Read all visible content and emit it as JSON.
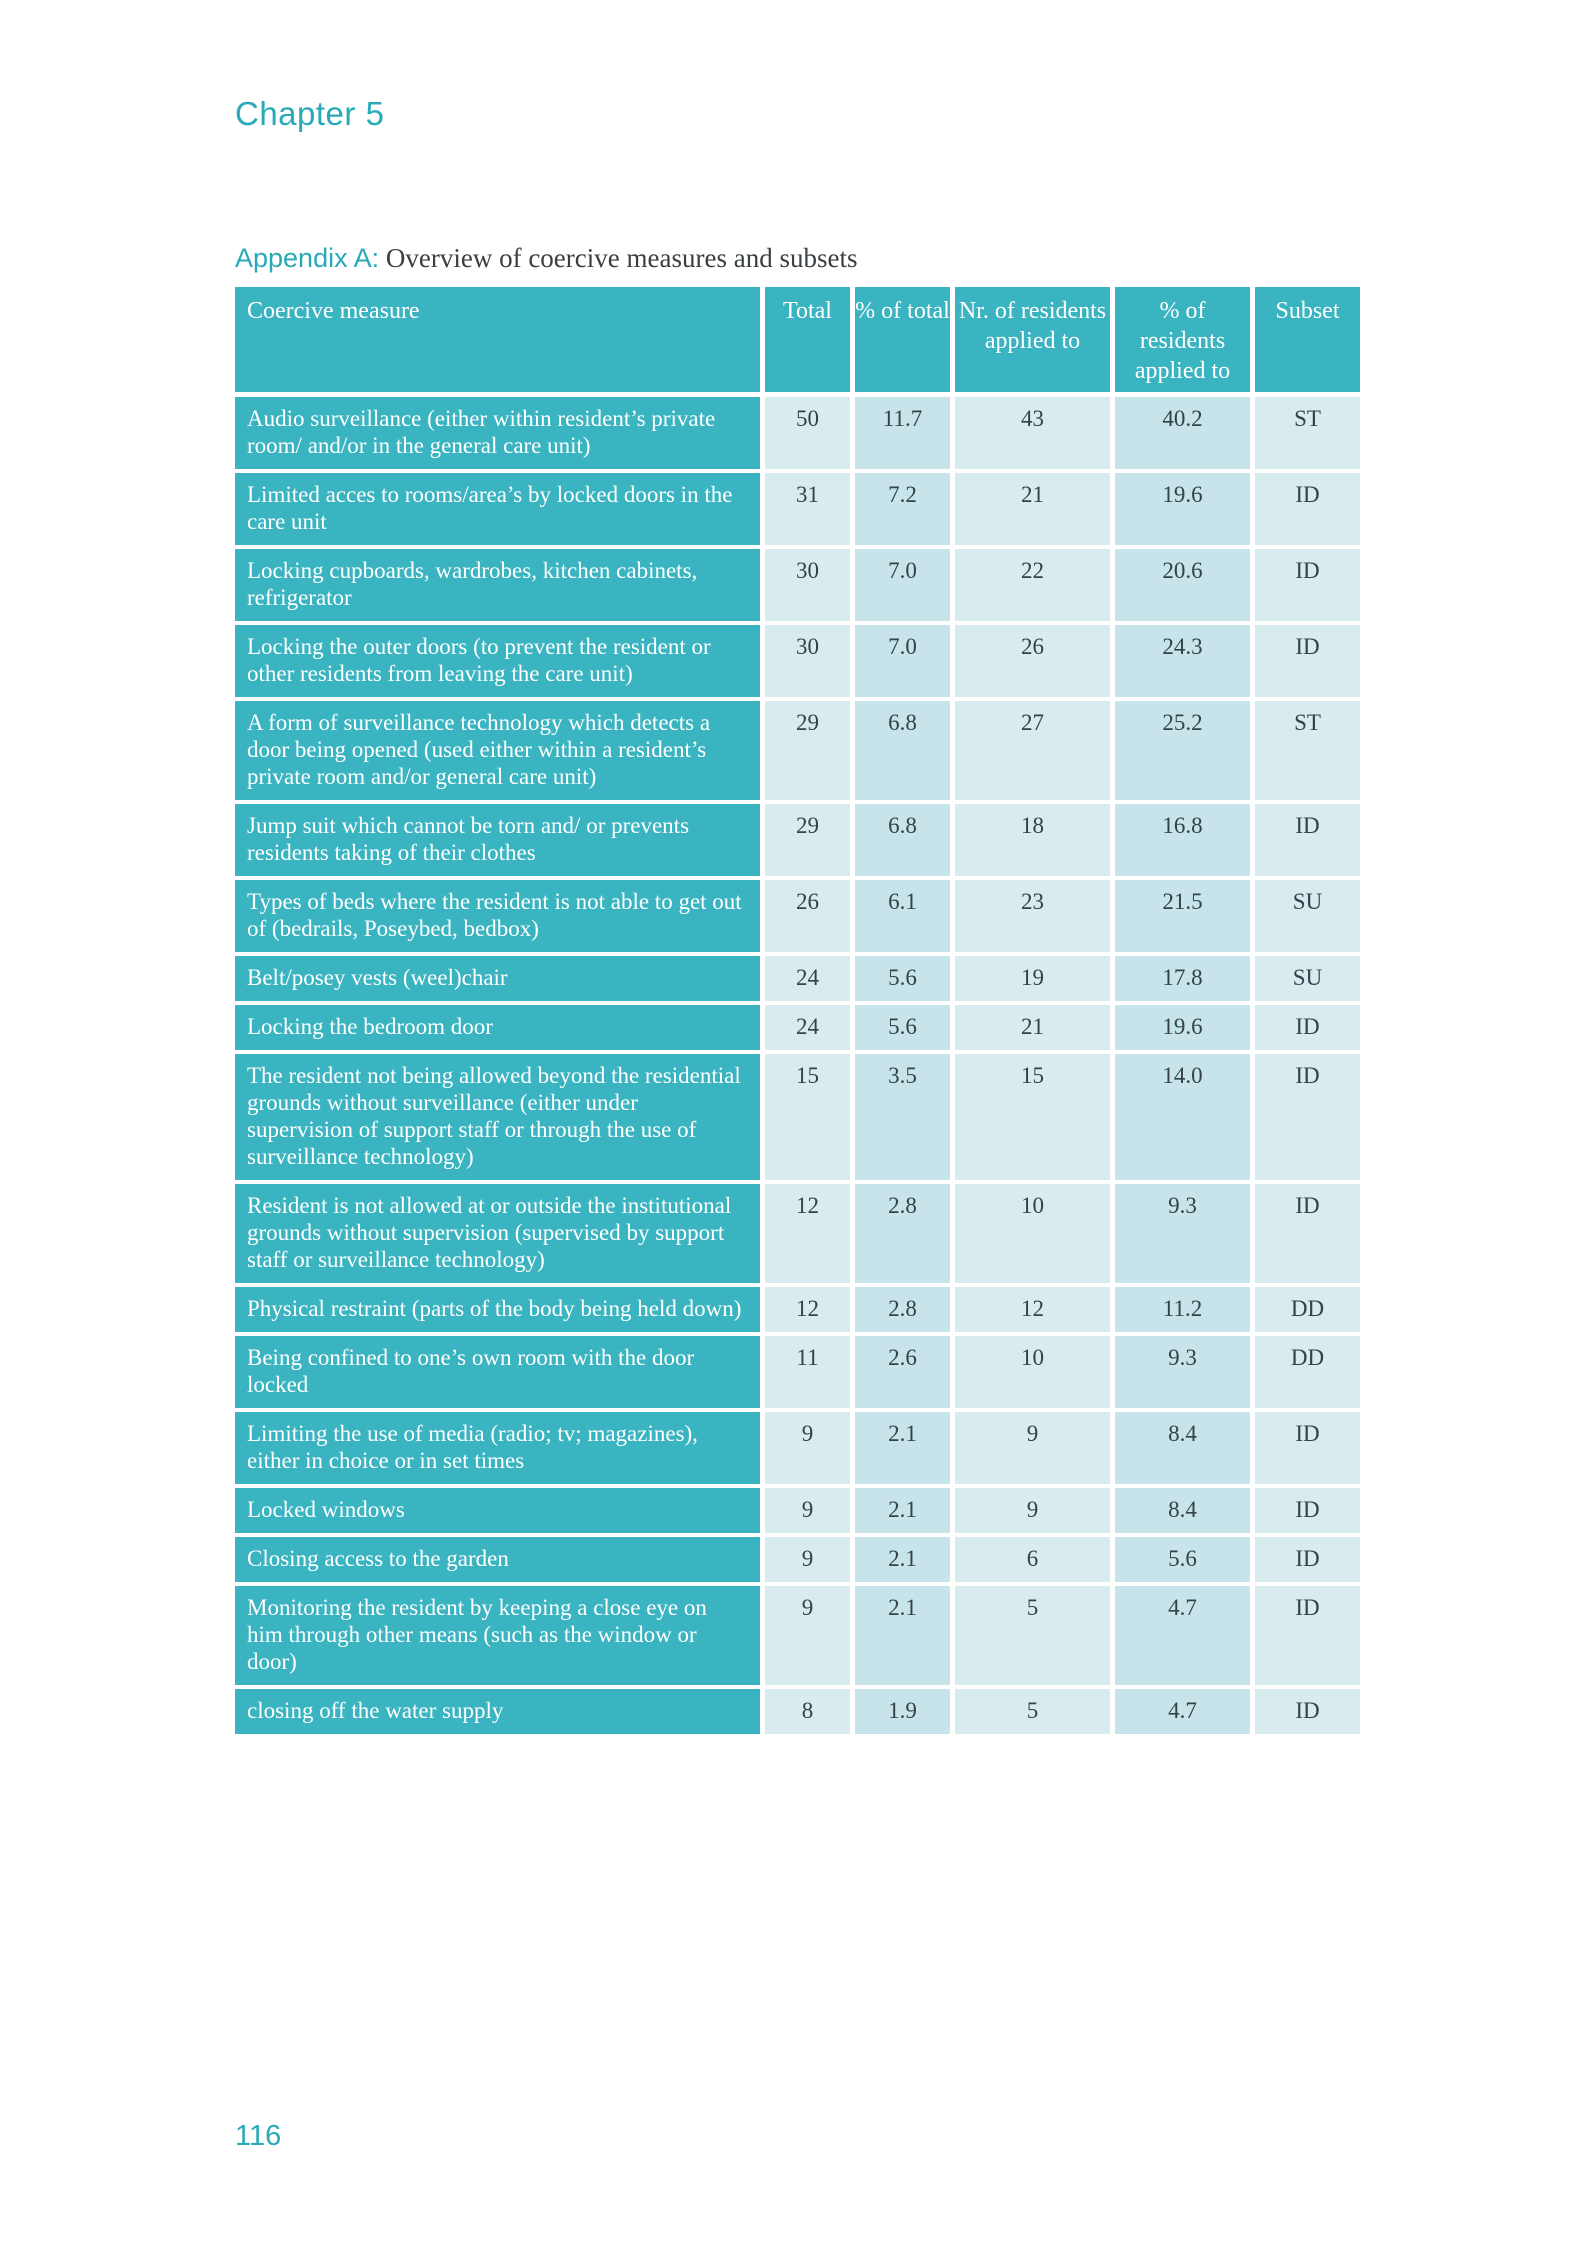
{
  "page": {
    "chapter": "Chapter 5",
    "page_number": "116"
  },
  "appendix": {
    "label": "Appendix A:",
    "title": " Overview of coercive measures and subsets"
  },
  "colors": {
    "teal": "#3ab4c1",
    "light_cell": "#d8ebee",
    "dark_cell": "#c6e4e9",
    "teal_text": "#2aa9b8",
    "body_text": "#33424a"
  },
  "table": {
    "headers": {
      "measure": "Coercive measure",
      "total": "Total",
      "pct_total": "% of total",
      "residents": "Nr. of residents applied to",
      "pct_residents": "% of residents applied to",
      "subset": "Subset"
    },
    "rows": [
      {
        "measure": "Audio surveillance (either within resident’s private room/ and/or in the general care unit)",
        "total": "50",
        "pct_total": "11.7",
        "residents": "43",
        "pct_residents": "40.2",
        "subset": "ST"
      },
      {
        "measure": "Limited acces to rooms/area’s by locked doors in the care unit",
        "total": "31",
        "pct_total": "7.2",
        "residents": "21",
        "pct_residents": "19.6",
        "subset": "ID"
      },
      {
        "measure": "Locking cupboards, wardrobes, kitchen cabinets, refrigerator",
        "total": "30",
        "pct_total": "7.0",
        "residents": "22",
        "pct_residents": "20.6",
        "subset": "ID"
      },
      {
        "measure": "Locking the outer doors (to prevent the resident or other residents from leaving the care unit)",
        "total": "30",
        "pct_total": "7.0",
        "residents": "26",
        "pct_residents": "24.3",
        "subset": "ID"
      },
      {
        "measure": "A form of surveillance technology which detects a door being opened (used either within a resident’s private room and/or general care unit)",
        "total": "29",
        "pct_total": "6.8",
        "residents": "27",
        "pct_residents": "25.2",
        "subset": "ST"
      },
      {
        "measure": "Jump suit which cannot be torn and/ or prevents residents taking of their clothes",
        "total": "29",
        "pct_total": "6.8",
        "residents": "18",
        "pct_residents": "16.8",
        "subset": "ID"
      },
      {
        "measure": "Types of beds where the resident is not able to get out of (bedrails, Poseybed, bedbox)",
        "total": "26",
        "pct_total": "6.1",
        "residents": "23",
        "pct_residents": "21.5",
        "subset": "SU"
      },
      {
        "measure": "Belt/posey vests (weel)chair",
        "total": "24",
        "pct_total": "5.6",
        "residents": "19",
        "pct_residents": "17.8",
        "subset": "SU"
      },
      {
        "measure": "Locking the bedroom door",
        "total": "24",
        "pct_total": "5.6",
        "residents": "21",
        "pct_residents": "19.6",
        "subset": "ID"
      },
      {
        "measure": "The resident not being allowed beyond the residential grounds without surveillance (either under supervision of support staff or through the use of surveillance technology)",
        "total": "15",
        "pct_total": "3.5",
        "residents": "15",
        "pct_residents": "14.0",
        "subset": "ID"
      },
      {
        "measure": "Resident is not allowed at or outside the institutional grounds without supervision (supervised by support staff or surveillance technology)",
        "total": "12",
        "pct_total": "2.8",
        "residents": "10",
        "pct_residents": "9.3",
        "subset": "ID"
      },
      {
        "measure": "Physical restraint (parts of the body being held down)",
        "total": "12",
        "pct_total": "2.8",
        "residents": "12",
        "pct_residents": "11.2",
        "subset": "DD"
      },
      {
        "measure": "Being confined to one’s own room with the door locked",
        "total": "11",
        "pct_total": "2.6",
        "residents": "10",
        "pct_residents": "9.3",
        "subset": "DD"
      },
      {
        "measure": "Limiting the use of media (radio; tv; magazines), either in choice or in set times",
        "total": "9",
        "pct_total": "2.1",
        "residents": "9",
        "pct_residents": "8.4",
        "subset": "ID"
      },
      {
        "measure": "Locked windows",
        "total": "9",
        "pct_total": "2.1",
        "residents": "9",
        "pct_residents": "8.4",
        "subset": "ID"
      },
      {
        "measure": "Closing access to the garden",
        "total": "9",
        "pct_total": "2.1",
        "residents": "6",
        "pct_residents": "5.6",
        "subset": "ID"
      },
      {
        "measure": "Monitoring the resident by keeping a close eye on him through other means (such as the window or door)",
        "total": "9",
        "pct_total": "2.1",
        "residents": "5",
        "pct_residents": "4.7",
        "subset": "ID"
      },
      {
        "measure": "closing off the water supply",
        "total": "8",
        "pct_total": "1.9",
        "residents": "5",
        "pct_residents": "4.7",
        "subset": "ID"
      }
    ]
  }
}
